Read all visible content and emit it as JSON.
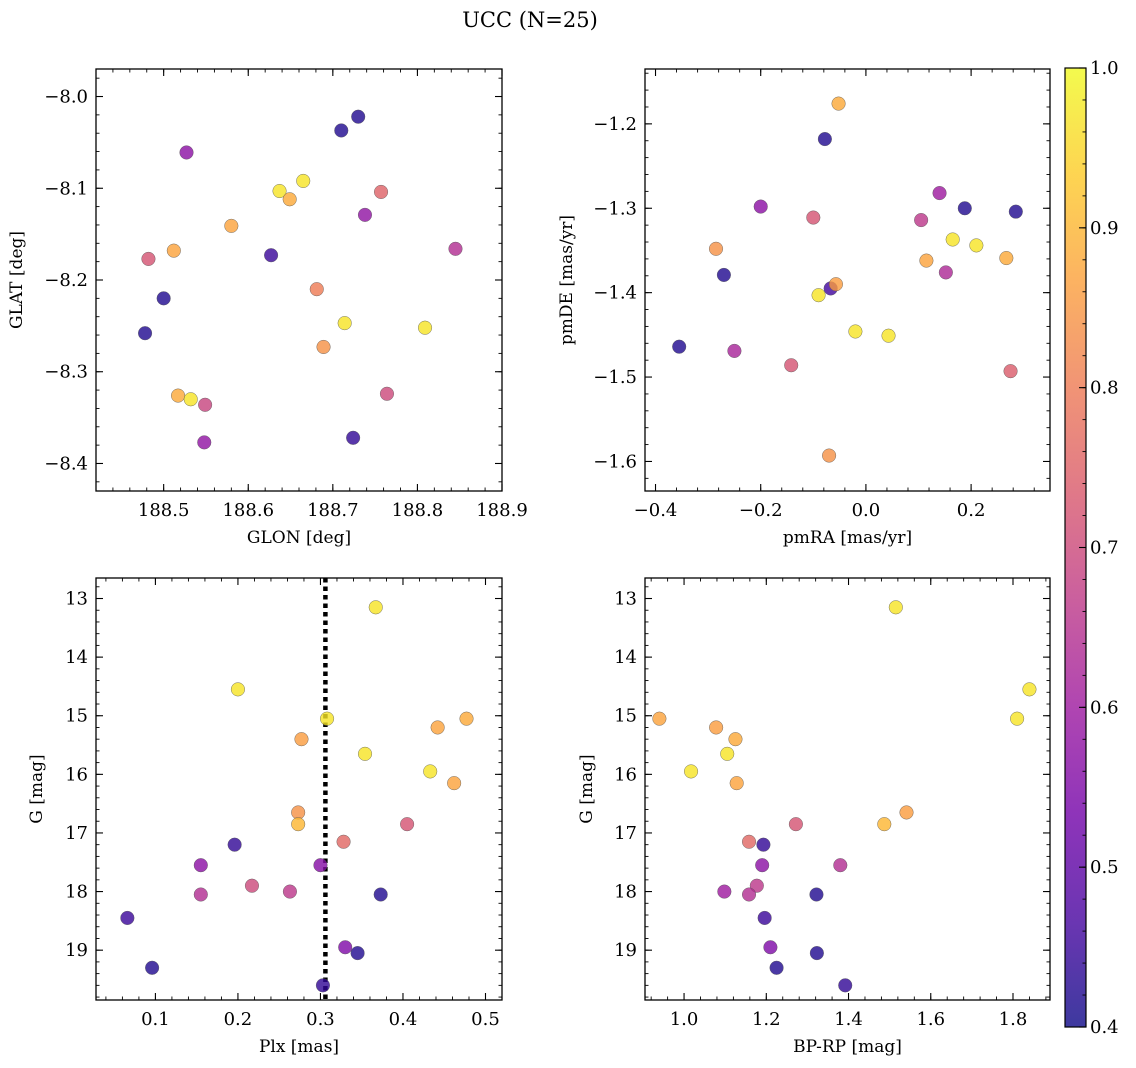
{
  "figure": {
    "suptitle": "UCC (N=25)",
    "colorbar": {
      "min": 0.4,
      "max": 1.0,
      "ticks": [
        0.4,
        0.5,
        0.6,
        0.7,
        0.8,
        0.9,
        1.0
      ],
      "tick_labels": [
        "0.4",
        "0.5",
        "0.6",
        "0.7",
        "0.8",
        "0.9",
        "1.0"
      ],
      "colormap": "plasma"
    },
    "cmap_stops": [
      "#0d0887",
      "#46039f",
      "#7201a8",
      "#9c179e",
      "#bd3786",
      "#d8576b",
      "#ed7953",
      "#fb9f3a",
      "#fdca26",
      "#f0f921"
    ],
    "marker_alpha": 0.8
  },
  "chart_data": [
    {
      "type": "scatter",
      "id": "glon-glat",
      "title": "",
      "xlabel": "GLON [deg]",
      "ylabel": "GLAT [deg]",
      "xlim": [
        188.42,
        188.9
      ],
      "ylim": [
        -8.43,
        -7.97
      ],
      "xticks": [
        188.5,
        188.6,
        188.7,
        188.8,
        188.9
      ],
      "xtick_labels": [
        "188.5",
        "188.6",
        "188.7",
        "188.8",
        "188.9"
      ],
      "yticks": [
        -8.4,
        -8.3,
        -8.2,
        -8.1,
        -8.0
      ],
      "ytick_labels": [
        "−8.4",
        "−8.3",
        "−8.2",
        "−8.1",
        "−8.0"
      ],
      "x": [
        188.73,
        188.71,
        188.527,
        188.665,
        188.637,
        188.649,
        188.757,
        188.58,
        188.738,
        188.845,
        188.512,
        188.482,
        188.627,
        188.681,
        188.5,
        188.714,
        188.478,
        188.809,
        188.689,
        188.517,
        188.532,
        188.764,
        188.549,
        188.548,
        188.724
      ],
      "y": [
        -8.022,
        -8.037,
        -8.061,
        -8.092,
        -8.103,
        -8.112,
        -8.104,
        -8.141,
        -8.129,
        -8.166,
        -8.168,
        -8.177,
        -8.173,
        -8.21,
        -8.22,
        -8.247,
        -8.258,
        -8.252,
        -8.273,
        -8.326,
        -8.33,
        -8.324,
        -8.336,
        -8.377,
        -8.372
      ],
      "prob": [
        0.42,
        0.42,
        0.57,
        0.97,
        0.97,
        0.88,
        0.75,
        0.87,
        0.58,
        0.64,
        0.87,
        0.72,
        0.45,
        0.8,
        0.42,
        0.97,
        0.42,
        0.97,
        0.84,
        0.88,
        0.97,
        0.7,
        0.69,
        0.58,
        0.44
      ]
    },
    {
      "type": "scatter",
      "id": "pmra-pmde",
      "title": "",
      "xlabel": "pmRA [mas/yr]",
      "ylabel": "pmDE [mas/yr]",
      "xlim": [
        -0.42,
        0.35
      ],
      "ylim": [
        -1.635,
        -1.135
      ],
      "xticks": [
        -0.4,
        -0.2,
        0.0,
        0.2
      ],
      "xtick_labels": [
        "−0.4",
        "−0.2",
        "0.0",
        "0.2"
      ],
      "yticks": [
        -1.6,
        -1.5,
        -1.4,
        -1.3,
        -1.2
      ],
      "ytick_labels": [
        "−1.6",
        "−1.5",
        "−1.4",
        "−1.3",
        "−1.2"
      ],
      "x": [
        -0.052,
        -0.078,
        -0.2,
        -0.1,
        0.14,
        0.188,
        0.285,
        0.105,
        -0.285,
        0.115,
        0.165,
        0.21,
        0.267,
        -0.27,
        0.152,
        -0.067,
        -0.057,
        -0.09,
        -0.02,
        0.043,
        -0.355,
        -0.25,
        -0.142,
        0.275,
        -0.07
      ],
      "y": [
        -1.176,
        -1.218,
        -1.298,
        -1.311,
        -1.282,
        -1.3,
        -1.304,
        -1.314,
        -1.348,
        -1.362,
        -1.337,
        -1.344,
        -1.359,
        -1.379,
        -1.376,
        -1.395,
        -1.39,
        -1.403,
        -1.446,
        -1.451,
        -1.464,
        -1.469,
        -1.486,
        -1.493,
        -1.593
      ],
      "prob": [
        0.88,
        0.42,
        0.57,
        0.72,
        0.6,
        0.42,
        0.42,
        0.66,
        0.84,
        0.87,
        0.97,
        0.97,
        0.88,
        0.42,
        0.63,
        0.46,
        0.86,
        0.97,
        0.97,
        0.97,
        0.42,
        0.62,
        0.72,
        0.74,
        0.84
      ]
    },
    {
      "type": "scatter",
      "id": "plx-g",
      "title": "",
      "xlabel": "Plx [mas]",
      "ylabel": "G [mag]",
      "xlim": [
        0.028,
        0.52
      ],
      "ylim": [
        19.85,
        12.65
      ],
      "xticks": [
        0.1,
        0.2,
        0.3,
        0.4,
        0.5
      ],
      "xtick_labels": [
        "0.1",
        "0.2",
        "0.3",
        "0.4",
        "0.5"
      ],
      "yticks": [
        13,
        14,
        15,
        16,
        17,
        18,
        19
      ],
      "ytick_labels": [
        "13",
        "14",
        "15",
        "16",
        "17",
        "18",
        "19"
      ],
      "vline": {
        "x": 0.306,
        "style": "dotted"
      },
      "x": [
        0.367,
        0.2,
        0.308,
        0.442,
        0.477,
        0.277,
        0.354,
        0.433,
        0.462,
        0.273,
        0.273,
        0.328,
        0.405,
        0.196,
        0.155,
        0.3,
        0.217,
        0.155,
        0.263,
        0.373,
        0.066,
        0.33,
        0.345,
        0.096,
        0.303
      ],
      "y": [
        13.15,
        14.55,
        15.05,
        15.2,
        15.05,
        15.4,
        15.65,
        15.95,
        16.15,
        16.65,
        16.85,
        17.15,
        16.85,
        17.2,
        17.55,
        17.55,
        17.9,
        18.05,
        18.0,
        18.05,
        18.45,
        18.95,
        19.05,
        19.3,
        19.6
      ],
      "prob": [
        0.97,
        0.97,
        0.97,
        0.87,
        0.88,
        0.86,
        0.97,
        0.97,
        0.87,
        0.84,
        0.9,
        0.76,
        0.72,
        0.44,
        0.57,
        0.56,
        0.7,
        0.64,
        0.66,
        0.42,
        0.45,
        0.55,
        0.42,
        0.42,
        0.44
      ]
    },
    {
      "type": "scatter",
      "id": "bprp-g",
      "title": "",
      "xlabel": "BP-RP [mag]",
      "ylabel": "G [mag]",
      "xlim": [
        0.905,
        1.89
      ],
      "ylim": [
        19.85,
        12.65
      ],
      "xticks": [
        1.0,
        1.2,
        1.4,
        1.6,
        1.8
      ],
      "xtick_labels": [
        "1.0",
        "1.2",
        "1.4",
        "1.6",
        "1.8"
      ],
      "yticks": [
        13,
        14,
        15,
        16,
        17,
        18,
        19
      ],
      "ytick_labels": [
        "13",
        "14",
        "15",
        "16",
        "17",
        "18",
        "19"
      ],
      "x": [
        1.515,
        1.84,
        1.81,
        0.94,
        1.078,
        1.125,
        1.105,
        1.017,
        1.128,
        1.541,
        1.487,
        1.272,
        1.158,
        1.193,
        1.38,
        1.19,
        1.177,
        1.098,
        1.158,
        1.322,
        1.196,
        1.21,
        1.323,
        1.225,
        1.392
      ],
      "y": [
        13.15,
        14.55,
        15.05,
        15.05,
        15.2,
        15.4,
        15.65,
        15.95,
        16.15,
        16.65,
        16.85,
        16.85,
        17.15,
        17.2,
        17.55,
        17.55,
        17.9,
        18.0,
        18.05,
        18.05,
        18.45,
        18.95,
        19.05,
        19.3,
        19.6
      ],
      "prob": [
        0.97,
        0.97,
        0.97,
        0.87,
        0.86,
        0.88,
        0.97,
        0.97,
        0.87,
        0.86,
        0.9,
        0.72,
        0.76,
        0.44,
        0.64,
        0.57,
        0.66,
        0.6,
        0.64,
        0.42,
        0.45,
        0.55,
        0.42,
        0.42,
        0.44
      ]
    }
  ]
}
